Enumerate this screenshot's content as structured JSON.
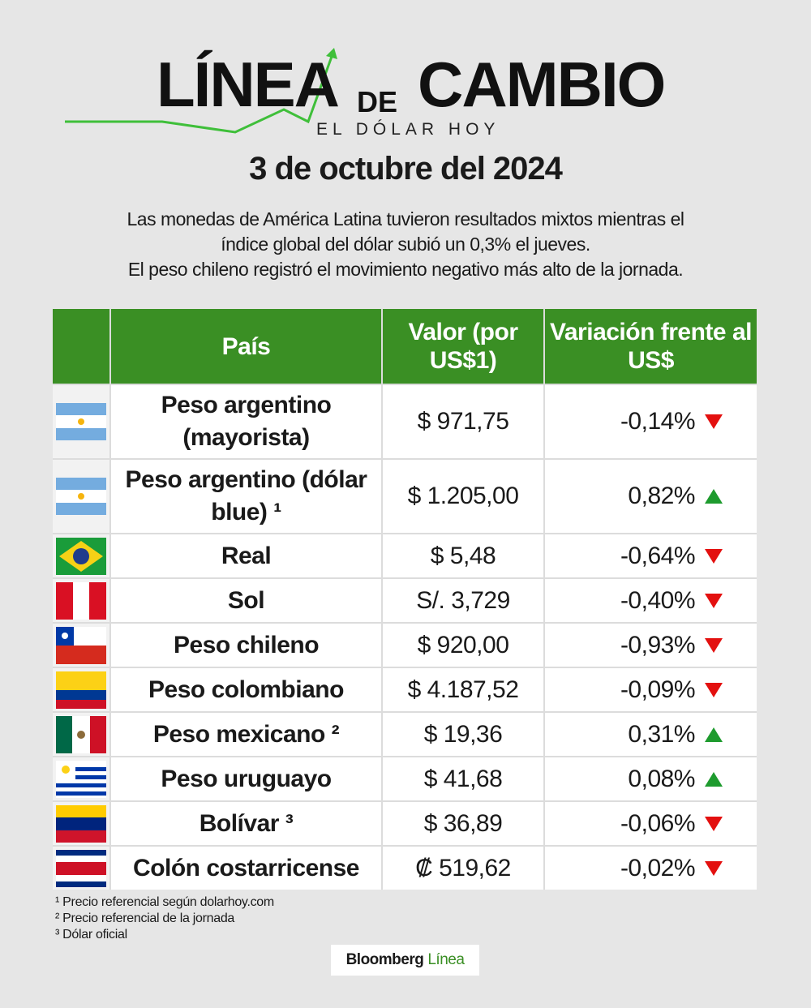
{
  "header": {
    "logo": {
      "word1": "LÍNEA",
      "word2": "DE",
      "word3": "CAMBIO",
      "tagline": "EL DÓLAR HOY"
    },
    "date": "3 de octubre del 2024",
    "description": [
      "Las monedas de América Latina tuvieron resultados mixtos mientras el",
      "índice global del dólar subió un 0,3% el jueves.",
      "El peso chileno registró el movimiento negativo más alto de la jornada."
    ]
  },
  "table": {
    "columns": [
      "País",
      "Valor (por US$1)",
      "Variación frente al US$"
    ],
    "rows": [
      [
        "Peso argentino (mayorista)",
        "$ 971,75",
        "-0,14%"
      ],
      [
        "Peso argentino (dólar blue) ¹",
        "$ 1.205,00",
        "0,82%"
      ],
      [
        "Real",
        "$ 5,48",
        "-0,64%"
      ],
      [
        "Sol",
        "S/. 3,729",
        "-0,40%"
      ],
      [
        "Peso chileno",
        "$ 920,00",
        "-0,93%"
      ],
      [
        "Peso colombiano",
        "$ 4.187,52",
        "-0,09%"
      ],
      [
        "Peso mexicano ²",
        "$ 19,36",
        "0,31%"
      ],
      [
        "Peso uruguayo",
        "$ 41,68",
        "0,08%"
      ],
      [
        "Bolívar ³",
        "$ 36,89",
        "-0,06%"
      ],
      [
        "Colón costarricense",
        "₡ 519,62",
        "-0,02%"
      ]
    ]
  },
  "footnotes": [
    "¹ Precio referencial según dolarhoy.com",
    "² Precio referencial de la jornada",
    "³ Dólar oficial"
  ],
  "footer": {
    "brand": "Bloomberg",
    "brand2": "Línea"
  }
}
